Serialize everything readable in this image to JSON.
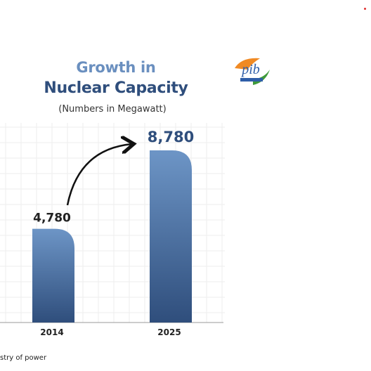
{
  "header": {
    "title_line1": "Growth in",
    "title_line2": "Nuclear Capacity",
    "subtitle": "(Numbers in Megawatt)"
  },
  "logo": {
    "icon": "pib-logo-icon",
    "text": "pib",
    "colors": [
      "#f08a24",
      "#ffffff",
      "#3f9a3a",
      "#2f5ea8"
    ]
  },
  "footer": {
    "source": "stry of power"
  },
  "chart_data": {
    "type": "bar",
    "title": "Growth in Nuclear Capacity",
    "subtitle": "(Numbers in Megawatt)",
    "categories": [
      "2014",
      "2025"
    ],
    "values": [
      4780,
      8780
    ],
    "value_labels": [
      "4,780",
      "8,780"
    ],
    "ylim": [
      0,
      10000
    ],
    "grid": true,
    "legend": "none",
    "annotation": "curved arrow from 2014 bar to 2025 bar",
    "colors": {
      "bar_top": "#6d95c6",
      "bar_bottom": "#2f4e7c",
      "title_gradient_start": "#6a8fbf",
      "title_gradient_end": "#2f4e7c"
    }
  }
}
